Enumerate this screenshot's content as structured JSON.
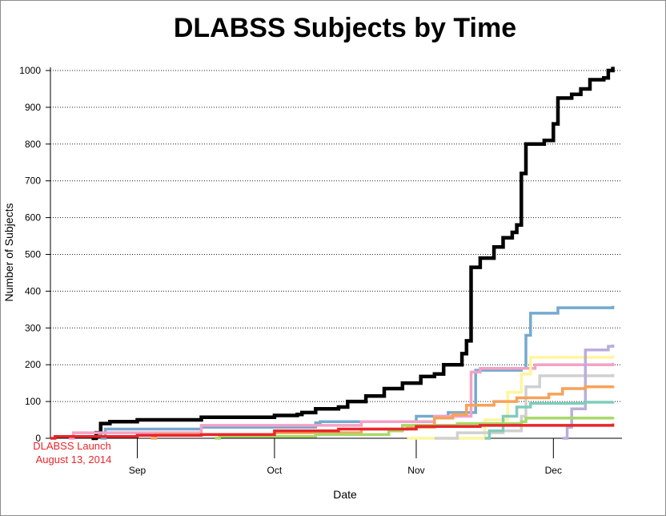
{
  "chart_data": {
    "type": "line",
    "title": "DLABSS Subjects by Time",
    "xlabel": "Date",
    "ylabel": "Number of Subjects",
    "xlim": [
      "2014-08-13",
      "2014-12-16"
    ],
    "ylim": [
      0,
      1000
    ],
    "x_ticks": [
      {
        "label": "Sep",
        "date": "2014-09-01"
      },
      {
        "label": "Oct",
        "date": "2014-10-01"
      },
      {
        "label": "Nov",
        "date": "2014-11-01"
      },
      {
        "label": "Dec",
        "date": "2014-12-01"
      }
    ],
    "y_ticks": [
      0,
      100,
      200,
      300,
      400,
      500,
      600,
      700,
      800,
      900,
      1000
    ],
    "grid": "horizontal dotted",
    "step": true,
    "annotations": [
      {
        "line1": "DLABSS Launch",
        "line2": "August 13, 2014",
        "color": "#e8262a"
      }
    ],
    "series": [
      {
        "color": "#000000",
        "width": 4.5,
        "points": [
          [
            "2014-08-22",
            0
          ],
          [
            "2014-08-23",
            15
          ],
          [
            "2014-08-24",
            40
          ],
          [
            "2014-08-26",
            45
          ],
          [
            "2014-09-01",
            50
          ],
          [
            "2014-09-15",
            57
          ],
          [
            "2014-10-01",
            62
          ],
          [
            "2014-10-06",
            65
          ],
          [
            "2014-10-07",
            70
          ],
          [
            "2014-10-10",
            80
          ],
          [
            "2014-10-15",
            85
          ],
          [
            "2014-10-17",
            100
          ],
          [
            "2014-10-21",
            115
          ],
          [
            "2014-10-25",
            135
          ],
          [
            "2014-10-29",
            150
          ],
          [
            "2014-11-02",
            168
          ],
          [
            "2014-11-05",
            175
          ],
          [
            "2014-11-07",
            200
          ],
          [
            "2014-11-11",
            230
          ],
          [
            "2014-11-12",
            265
          ],
          [
            "2014-11-13",
            465
          ],
          [
            "2014-11-15",
            490
          ],
          [
            "2014-11-18",
            520
          ],
          [
            "2014-11-20",
            545
          ],
          [
            "2014-11-22",
            560
          ],
          [
            "2014-11-23",
            580
          ],
          [
            "2014-11-24",
            720
          ],
          [
            "2014-11-25",
            800
          ],
          [
            "2014-11-29",
            810
          ],
          [
            "2014-12-01",
            855
          ],
          [
            "2014-12-02",
            925
          ],
          [
            "2014-12-05",
            935
          ],
          [
            "2014-12-07",
            950
          ],
          [
            "2014-12-09",
            975
          ],
          [
            "2014-12-12",
            980
          ],
          [
            "2014-12-13",
            1000
          ],
          [
            "2014-12-14",
            1010
          ]
        ]
      },
      {
        "color": "#74a9cf",
        "width": 3.5,
        "points": [
          [
            "2014-08-24",
            0
          ],
          [
            "2014-08-25",
            25
          ],
          [
            "2014-09-15",
            30
          ],
          [
            "2014-10-10",
            42
          ],
          [
            "2014-10-11",
            45
          ],
          [
            "2014-11-01",
            60
          ],
          [
            "2014-11-08",
            70
          ],
          [
            "2014-11-14",
            185
          ],
          [
            "2014-11-24",
            190
          ],
          [
            "2014-11-25",
            280
          ],
          [
            "2014-11-26",
            340
          ],
          [
            "2014-12-02",
            355
          ],
          [
            "2014-12-14",
            360
          ]
        ]
      },
      {
        "color": "#f2a2c6",
        "width": 3.5,
        "points": [
          [
            "2014-08-17",
            0
          ],
          [
            "2014-08-18",
            15
          ],
          [
            "2014-09-15",
            35
          ],
          [
            "2014-10-20",
            45
          ],
          [
            "2014-11-05",
            60
          ],
          [
            "2014-11-13",
            180
          ],
          [
            "2014-11-15",
            190
          ],
          [
            "2014-11-27",
            200
          ],
          [
            "2014-12-14",
            205
          ]
        ]
      },
      {
        "color": "#fff59d",
        "width": 3.5,
        "points": [
          [
            "2014-10-30",
            0
          ],
          [
            "2014-11-16",
            50
          ],
          [
            "2014-11-21",
            125
          ],
          [
            "2014-11-24",
            175
          ],
          [
            "2014-11-26",
            220
          ],
          [
            "2014-12-14",
            225
          ]
        ]
      },
      {
        "color": "#d0d0d0",
        "width": 3.5,
        "points": [
          [
            "2014-11-05",
            0
          ],
          [
            "2014-11-10",
            15
          ],
          [
            "2014-11-20",
            20
          ],
          [
            "2014-11-24",
            60
          ],
          [
            "2014-11-25",
            140
          ],
          [
            "2014-11-28",
            170
          ],
          [
            "2014-12-14",
            175
          ]
        ]
      },
      {
        "color": "#b9aedb",
        "width": 3.5,
        "points": [
          [
            "2014-12-03",
            0
          ],
          [
            "2014-12-04",
            30
          ],
          [
            "2014-12-05",
            80
          ],
          [
            "2014-12-08",
            240
          ],
          [
            "2014-12-13",
            250
          ],
          [
            "2014-12-14",
            255
          ]
        ]
      },
      {
        "color": "#f6a25a",
        "width": 3.5,
        "points": [
          [
            "2014-09-04",
            0
          ],
          [
            "2014-09-05",
            10
          ],
          [
            "2014-10-01",
            15
          ],
          [
            "2014-10-20",
            25
          ],
          [
            "2014-10-30",
            30
          ],
          [
            "2014-11-05",
            55
          ],
          [
            "2014-11-09",
            65
          ],
          [
            "2014-11-12",
            90
          ],
          [
            "2014-11-18",
            100
          ],
          [
            "2014-11-23",
            110
          ],
          [
            "2014-11-30",
            120
          ],
          [
            "2014-12-03",
            135
          ],
          [
            "2014-12-08",
            140
          ],
          [
            "2014-12-14",
            143
          ]
        ]
      },
      {
        "color": "#7fcdbb",
        "width": 3.5,
        "points": [
          [
            "2014-11-16",
            0
          ],
          [
            "2014-11-17",
            20
          ],
          [
            "2014-11-20",
            60
          ],
          [
            "2014-11-23",
            85
          ],
          [
            "2014-11-26",
            95
          ],
          [
            "2014-12-08",
            98
          ],
          [
            "2014-12-14",
            100
          ]
        ]
      },
      {
        "color": "#a6d96a",
        "width": 3.5,
        "points": [
          [
            "2014-09-18",
            0
          ],
          [
            "2014-09-19",
            5
          ],
          [
            "2014-10-10",
            10
          ],
          [
            "2014-10-26",
            20
          ],
          [
            "2014-10-29",
            35
          ],
          [
            "2014-11-10",
            40
          ],
          [
            "2014-11-24",
            45
          ],
          [
            "2014-11-25",
            55
          ],
          [
            "2014-12-14",
            58
          ]
        ]
      },
      {
        "color": "#e8262a",
        "width": 3.5,
        "points": [
          [
            "2014-08-13",
            0
          ],
          [
            "2014-08-14",
            5
          ],
          [
            "2014-09-01",
            8
          ],
          [
            "2014-09-15",
            10
          ],
          [
            "2014-10-01",
            20
          ],
          [
            "2014-10-15",
            25
          ],
          [
            "2014-11-01",
            32
          ],
          [
            "2014-11-15",
            35
          ],
          [
            "2014-12-14",
            40
          ]
        ]
      }
    ]
  }
}
